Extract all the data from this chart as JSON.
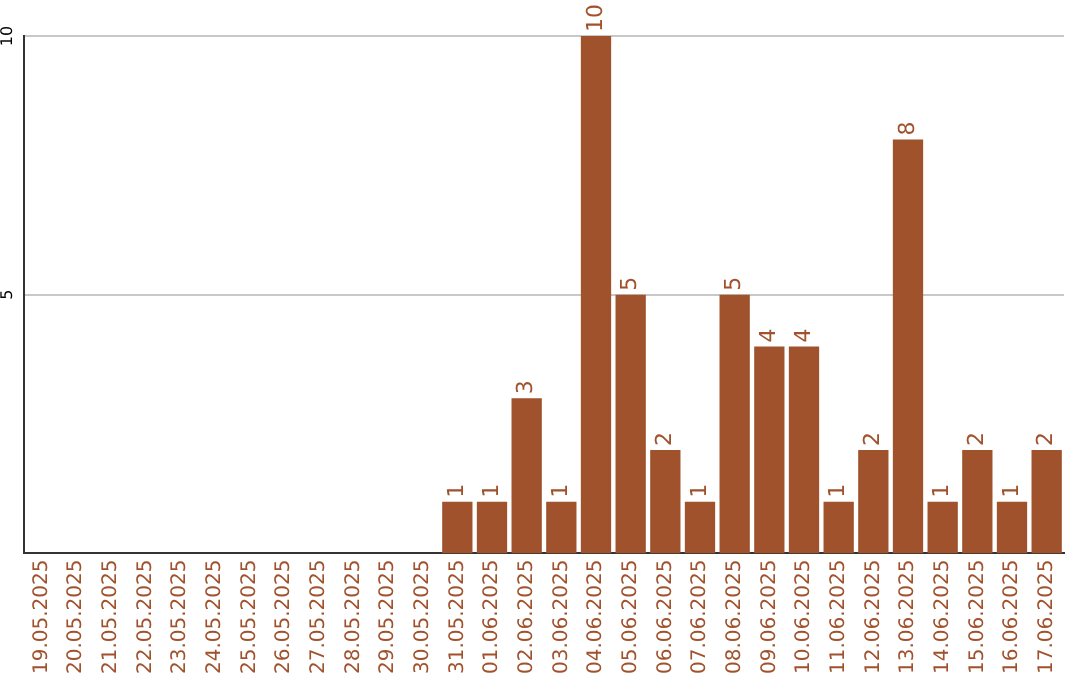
{
  "chart_data": {
    "type": "bar",
    "categories": [
      "19.05.2025",
      "20.05.2025",
      "21.05.2025",
      "22.05.2025",
      "23.05.2025",
      "24.05.2025",
      "25.05.2025",
      "26.05.2025",
      "27.05.2025",
      "28.05.2025",
      "29.05.2025",
      "30.05.2025",
      "31.05.2025",
      "01.06.2025",
      "02.06.2025",
      "03.06.2025",
      "04.06.2025",
      "05.06.2025",
      "06.06.2025",
      "07.06.2025",
      "08.06.2025",
      "09.06.2025",
      "10.06.2025",
      "11.06.2025",
      "12.06.2025",
      "13.06.2025",
      "14.06.2025",
      "15.06.2025",
      "16.06.2025",
      "17.06.2025"
    ],
    "values": [
      0,
      0,
      0,
      0,
      0,
      0,
      0,
      0,
      0,
      0,
      0,
      0,
      1,
      1,
      3,
      1,
      10,
      5,
      2,
      1,
      5,
      4,
      4,
      1,
      2,
      8,
      1,
      2,
      1,
      2
    ],
    "value_labels": [
      null,
      null,
      null,
      null,
      null,
      null,
      null,
      null,
      null,
      null,
      null,
      null,
      "1",
      "1",
      "3",
      "1",
      "10",
      "5",
      "2",
      "1",
      "5",
      "4",
      "4",
      "1",
      "2",
      "8",
      "1",
      "2",
      "1",
      "2"
    ],
    "color": "#a0522d",
    "ylim": [
      0,
      10
    ],
    "yticks": [
      5,
      10
    ],
    "grid": "y",
    "legend": false
  }
}
